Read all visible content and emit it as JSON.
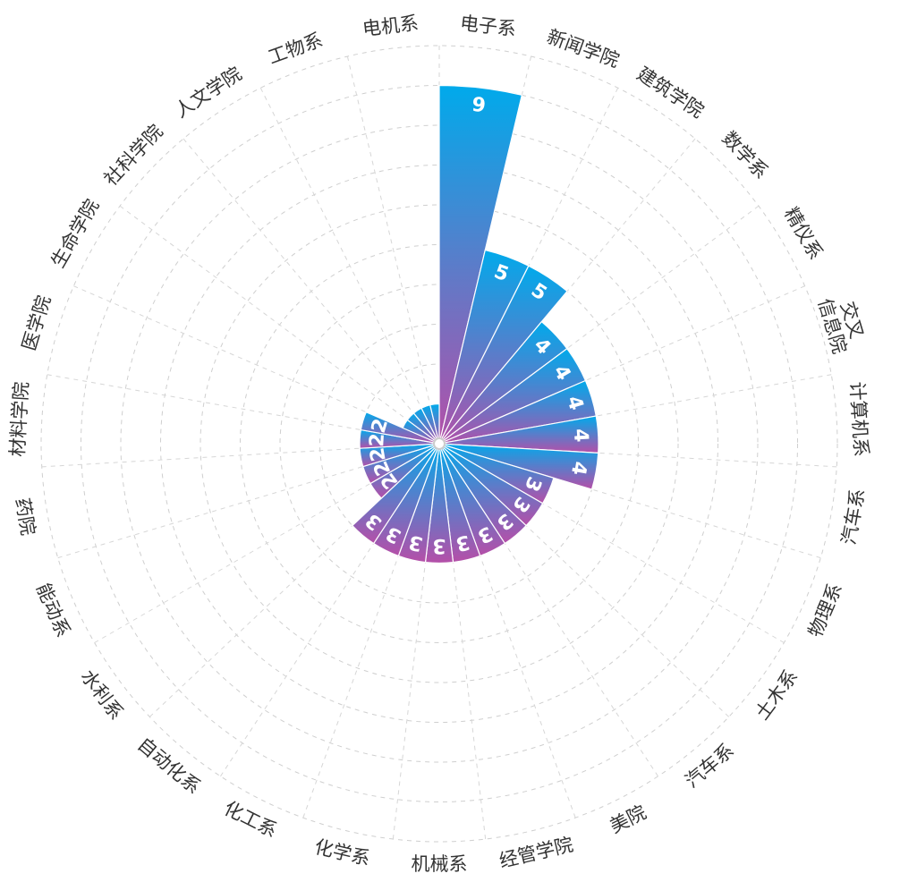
{
  "chart_data": {
    "type": "polar-bar",
    "categories": [
      "电子系",
      "新闻学院",
      "建筑学院",
      "数学系",
      "精仪系",
      "交叉\n信息院",
      "计算机系",
      "汽车系",
      "物理系",
      "土木系",
      "汽车系",
      "美院",
      "经管学院",
      "机械系",
      "化学系",
      "化工系",
      "自动化系",
      "水利系",
      "能动系",
      "药院",
      "材料学院",
      "医学院",
      "生命学院",
      "社科学院",
      "人文学院",
      "工物系",
      "电机系"
    ],
    "values": [
      9,
      5,
      5,
      4,
      4,
      4,
      4,
      4,
      3,
      3,
      3,
      3,
      3,
      3,
      3,
      3,
      3,
      2,
      2,
      2,
      2,
      2,
      1,
      1,
      1,
      1,
      1
    ],
    "value_labels": [
      "9",
      "5",
      "5",
      "4",
      "4",
      "4",
      "4",
      "4",
      "3",
      "3",
      "3",
      "3",
      "3",
      "3",
      "3",
      "3",
      "3",
      "2",
      "2",
      "2",
      "2",
      "2",
      "",
      "",
      "",
      "",
      ""
    ],
    "radial_max": 10,
    "grid": true,
    "colors": {
      "start": "#00aaeb",
      "end": "#b54fa8",
      "label": "#333333",
      "grid": "#cfcfcf"
    }
  }
}
